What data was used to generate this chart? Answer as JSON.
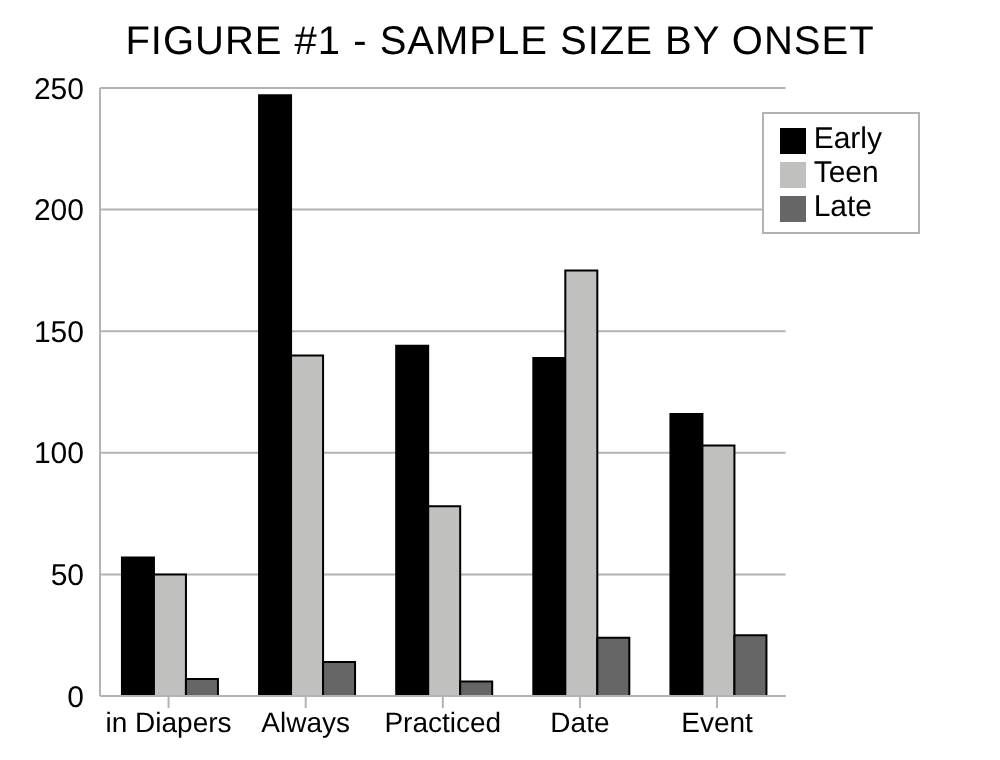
{
  "chart_data": {
    "type": "bar",
    "title": "FIGURE #1 - SAMPLE SIZE BY ONSET",
    "categories": [
      "in Diapers",
      "Always",
      "Practiced",
      "Date",
      "Event"
    ],
    "series": [
      {
        "name": "Early",
        "color": "#000000",
        "values": [
          57,
          247,
          144,
          139,
          116
        ]
      },
      {
        "name": "Teen",
        "color": "#c0c1bf",
        "values": [
          50,
          140,
          78,
          175,
          103
        ]
      },
      {
        "name": "Late",
        "color": "#666666",
        "values": [
          7,
          14,
          6,
          24,
          25
        ]
      }
    ],
    "ylim": [
      0,
      250
    ],
    "yticks": [
      0,
      50,
      100,
      150,
      200,
      250
    ],
    "grid": "y",
    "legend": "top right"
  }
}
